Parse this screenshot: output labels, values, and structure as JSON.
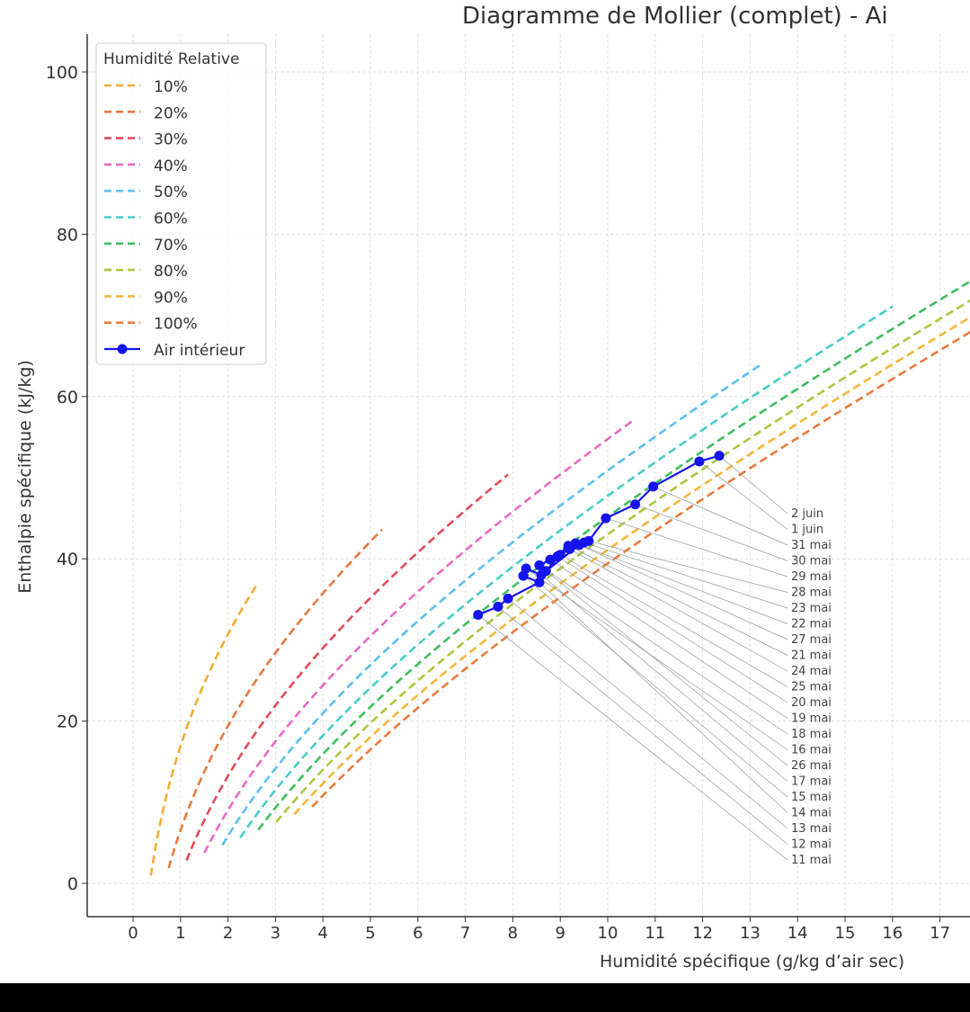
{
  "chart_data": {
    "type": "line",
    "title": "Diagramme de Mollier (complet) - Ai",
    "xlabel": "Humidité spécifique (g/kg d’air sec)",
    "ylabel": "Enthalpie spécifique (kJ/kg)",
    "xlim": [
      -1,
      17.6
    ],
    "ylim": [
      -4.3,
      104.7
    ],
    "xticks": [
      "0",
      "1",
      "2",
      "3",
      "4",
      "5",
      "6",
      "7",
      "8",
      "9",
      "10",
      "11",
      "12",
      "13",
      "14",
      "15",
      "16",
      "17"
    ],
    "yticks": [
      "0",
      "20",
      "40",
      "60",
      "80",
      "100"
    ],
    "grid": true,
    "legend": {
      "title": "Humidité Relative",
      "placement": "top-left"
    },
    "rh_curves": {
      "temperature_range_C": [
        0,
        30
      ],
      "pressure_Pa": 101325,
      "series": [
        {
          "name": "10%",
          "rh": 0.1,
          "color": "#f5ad35"
        },
        {
          "name": "20%",
          "rh": 0.2,
          "color": "#e87a3e"
        },
        {
          "name": "30%",
          "rh": 0.3,
          "color": "#e24a5a"
        },
        {
          "name": "40%",
          "rh": 0.4,
          "color": "#e86ac6"
        },
        {
          "name": "50%",
          "rh": 0.5,
          "color": "#5cc0f3"
        },
        {
          "name": "60%",
          "rh": 0.6,
          "color": "#48cdc8"
        },
        {
          "name": "70%",
          "rh": 0.7,
          "color": "#3fbf60"
        },
        {
          "name": "80%",
          "rh": 0.8,
          "color": "#a9c840"
        },
        {
          "name": "90%",
          "rh": 0.9,
          "color": "#f6b73c"
        },
        {
          "name": "100%",
          "rh": 1.0,
          "color": "#ea7b3c"
        }
      ]
    },
    "series": [
      {
        "name": "Air intérieur",
        "color": "#1414ee",
        "points": [
          {
            "label": "11 mai",
            "x": 7.27,
            "y": 33.1
          },
          {
            "label": "12 mai",
            "x": 7.69,
            "y": 34.1
          },
          {
            "label": "13 mai",
            "x": 7.9,
            "y": 35.1
          },
          {
            "label": "14 mai",
            "x": 8.56,
            "y": 37.1
          },
          {
            "label": "15 mai",
            "x": 8.22,
            "y": 37.9
          },
          {
            "label": "16 mai",
            "x": 8.28,
            "y": 38.8
          },
          {
            "label": "17 mai",
            "x": 8.6,
            "y": 38.0
          },
          {
            "label": "18 mai",
            "x": 8.56,
            "y": 39.2
          },
          {
            "label": "19 mai",
            "x": 8.79,
            "y": 39.9
          },
          {
            "label": "20 mai",
            "x": 8.94,
            "y": 40.3
          },
          {
            "label": "21 mai",
            "x": 9.17,
            "y": 41.6
          },
          {
            "label": "22 mai",
            "x": 9.32,
            "y": 41.9
          },
          {
            "label": "23 mai",
            "x": 9.5,
            "y": 42.0
          },
          {
            "label": "24 mai",
            "x": 9.2,
            "y": 41.2
          },
          {
            "label": "25 mai",
            "x": 9.0,
            "y": 40.5
          },
          {
            "label": "26 mai",
            "x": 8.7,
            "y": 38.5
          },
          {
            "label": "27 mai",
            "x": 9.4,
            "y": 41.7
          },
          {
            "label": "28 mai",
            "x": 9.6,
            "y": 42.2
          },
          {
            "label": "29 mai",
            "x": 9.96,
            "y": 45.0
          },
          {
            "label": "30 mai",
            "x": 10.58,
            "y": 46.7
          },
          {
            "label": "31 mai",
            "x": 10.96,
            "y": 48.9
          },
          {
            "label": "1 juin",
            "x": 11.93,
            "y": 52.0
          },
          {
            "label": "2 juin",
            "x": 12.35,
            "y": 52.7
          }
        ]
      }
    ]
  }
}
